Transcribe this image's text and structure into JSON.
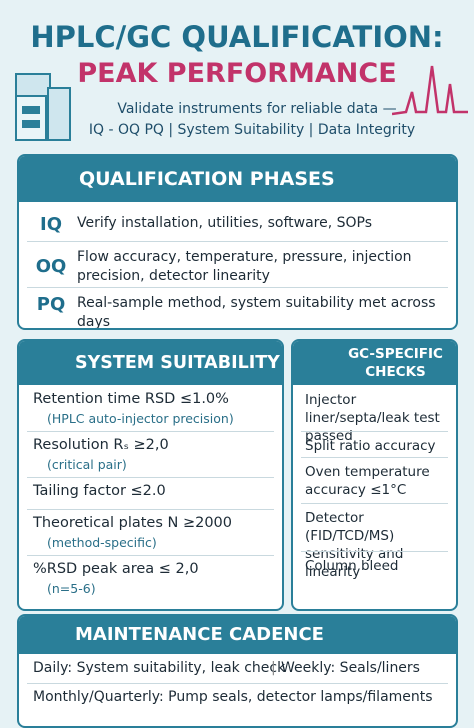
{
  "header": {
    "title": "HPLC/GC QUALIFICATION:",
    "subtitle": "PEAK PERFORMANCE",
    "description": [
      "Validate instruments for reliable data —",
      "IQ - OQ PQ | System Suitability | Data Integrity"
    ]
  },
  "phases": {
    "title": "QUALIFICATION PHASES",
    "rows": [
      {
        "code": "IQ",
        "text": "Verify installation, utilities, software, SOPs"
      },
      {
        "code": "OQ",
        "text": "Flow accuracy, temperature, pressure, injection precision, detector linearity"
      },
      {
        "code": "PQ",
        "text": "Real-sample method, system suitability met across days"
      }
    ]
  },
  "suitability": {
    "title": "SYSTEM SUITABILITY",
    "items": [
      {
        "text": "Retention time RSD ≤1.0%",
        "note": "(HPLC auto-injector precision)"
      },
      {
        "text": "Resolution Rₛ ≥2,0",
        "note": "(critical pair)"
      },
      {
        "text": "Tailing factor ≤2.0"
      },
      {
        "text": "Theoretical plates N ≥2000",
        "note": "(method-specific)"
      },
      {
        "text": "%RSD peak area ≤ 2,0",
        "note": "(n=5-6)"
      }
    ]
  },
  "gc": {
    "title": "GC-SPECIFIC CHECKS",
    "items": [
      "Injector liner/septa/leak test passed",
      "Split ratio accuracy",
      "Oven temperature accuracy ≤1°C",
      "Detector (FID/TCD/MS) sensitivity and linearity",
      "Column bleed"
    ]
  },
  "maintenance": {
    "title": "MAINTENANCE CADENCE",
    "rows": [
      [
        "Daily: System suitability, leak check",
        "Weekly: Seals/liners"
      ],
      [
        "Monthly/Quarterly: Pump seals, detector lamps/filaments"
      ]
    ]
  }
}
